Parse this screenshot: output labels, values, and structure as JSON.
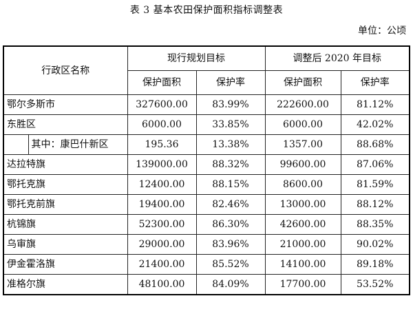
{
  "title": "表 3  基本农田保护面积指标调整表",
  "unit": "单位：公顷",
  "header": {
    "region": "行政区名称",
    "group_current": "现行规划目标",
    "group_adjusted": "调整后 2020 年目标",
    "area": "保护面积",
    "rate": "保护率"
  },
  "rows": [
    {
      "name": "鄂尔多斯市",
      "cur_area": "327600.00",
      "cur_rate": "83.99%",
      "adj_area": "222600.00",
      "adj_rate": "81.12%"
    },
    {
      "name": "东胜区",
      "cur_area": "6000.00",
      "cur_rate": "33.85%",
      "adj_area": "6000.00",
      "adj_rate": "42.02%"
    },
    {
      "name": "其中：康巴什新区",
      "cur_area": "195.36",
      "cur_rate": "13.38%",
      "adj_area": "1357.00",
      "adj_rate": "88.68%"
    },
    {
      "name": "达拉特旗",
      "cur_area": "139000.00",
      "cur_rate": "88.32%",
      "adj_area": "99600.00",
      "adj_rate": "87.06%"
    },
    {
      "name": "鄂托克旗",
      "cur_area": "12400.00",
      "cur_rate": "88.15%",
      "adj_area": "8600.00",
      "adj_rate": "81.59%"
    },
    {
      "name": "鄂托克前旗",
      "cur_area": "19400.00",
      "cur_rate": "82.46%",
      "adj_area": "13000.00",
      "adj_rate": "88.12%"
    },
    {
      "name": "杭锦旗",
      "cur_area": "52300.00",
      "cur_rate": "86.30%",
      "adj_area": "42600.00",
      "adj_rate": "88.35%"
    },
    {
      "name": "乌审旗",
      "cur_area": "29000.00",
      "cur_rate": "83.96%",
      "adj_area": "21000.00",
      "adj_rate": "90.02%"
    },
    {
      "name": "伊金霍洛旗",
      "cur_area": "21400.00",
      "cur_rate": "85.52%",
      "adj_area": "14100.00",
      "adj_rate": "89.18%"
    },
    {
      "name": "准格尔旗",
      "cur_area": "48100.00",
      "cur_rate": "84.09%",
      "adj_area": "17700.00",
      "adj_rate": "53.52%"
    }
  ]
}
